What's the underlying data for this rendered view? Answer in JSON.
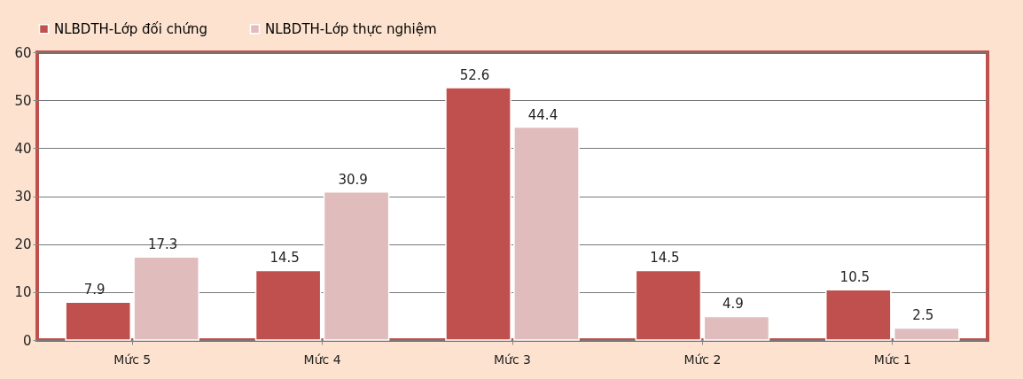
{
  "chart_data": {
    "type": "bar",
    "categories": [
      "Mức 5",
      "Mức 4",
      "Mức 3",
      "Mức 2",
      "Mức 1"
    ],
    "series": [
      {
        "name": "NLBDTH-Lớp  đối chứng",
        "color": "#c0504d",
        "values": [
          7.9,
          14.5,
          52.6,
          14.5,
          10.5
        ]
      },
      {
        "name": "NLBDTH-Lớp thực nghiệm",
        "color": "#e0bcbc",
        "values": [
          17.3,
          30.9,
          44.4,
          4.9,
          2.5
        ]
      }
    ],
    "ylim": [
      0,
      60
    ],
    "yticks": [
      0,
      10,
      20,
      30,
      40,
      50,
      60
    ],
    "grid": "y",
    "legend": "top",
    "data_labels": true
  }
}
